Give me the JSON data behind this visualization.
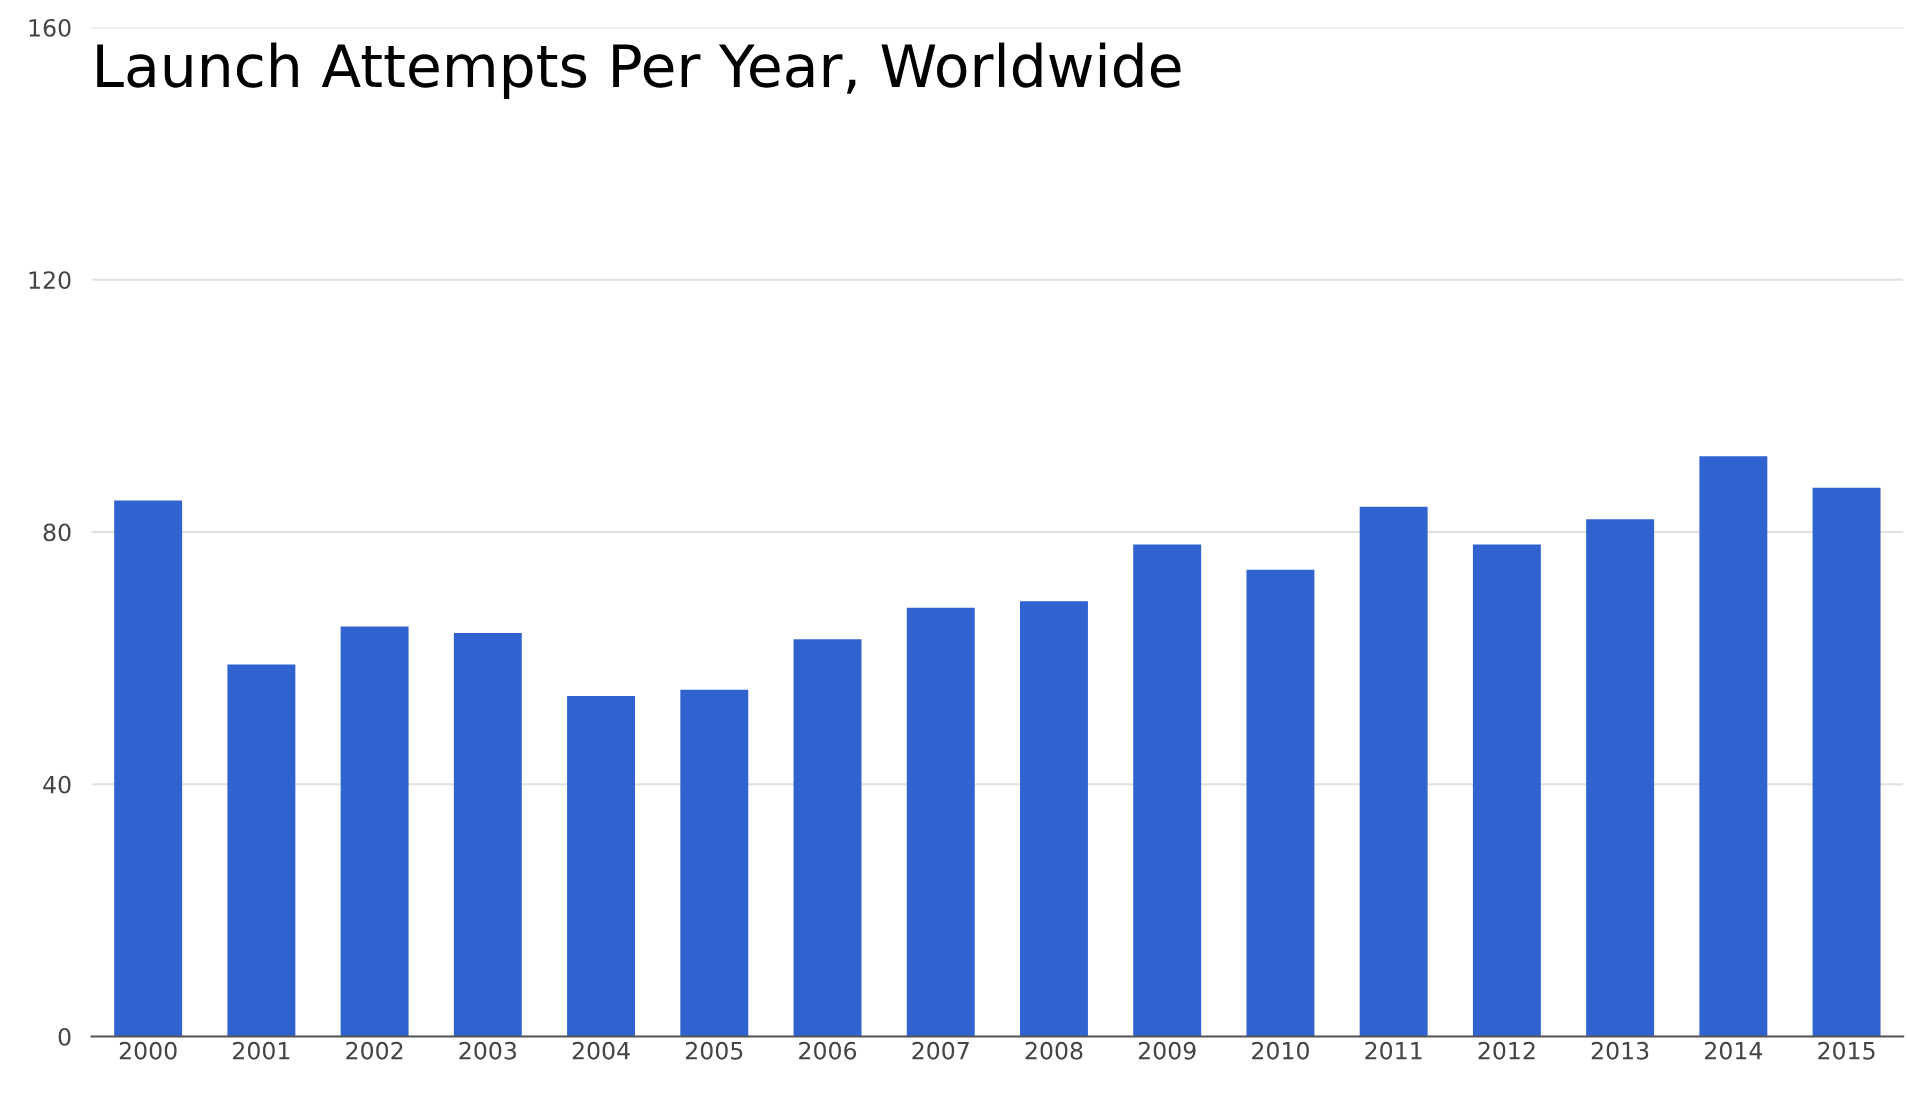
{
  "chart_data": {
    "type": "bar",
    "title": "Launch Attempts Per Year, Worldwide",
    "categories": [
      "2000",
      "2001",
      "2002",
      "2003",
      "2004",
      "2005",
      "2006",
      "2007",
      "2008",
      "2009",
      "2010",
      "2011",
      "2012",
      "2013",
      "2014",
      "2015"
    ],
    "values": [
      85,
      59,
      65,
      64,
      54,
      55,
      63,
      68,
      69,
      78,
      74,
      84,
      78,
      82,
      92,
      87
    ],
    "color": "#3063d0",
    "ylim": [
      0,
      160
    ],
    "yticks": [
      0,
      40,
      80,
      120,
      160
    ],
    "grid": "y",
    "legend": false
  }
}
